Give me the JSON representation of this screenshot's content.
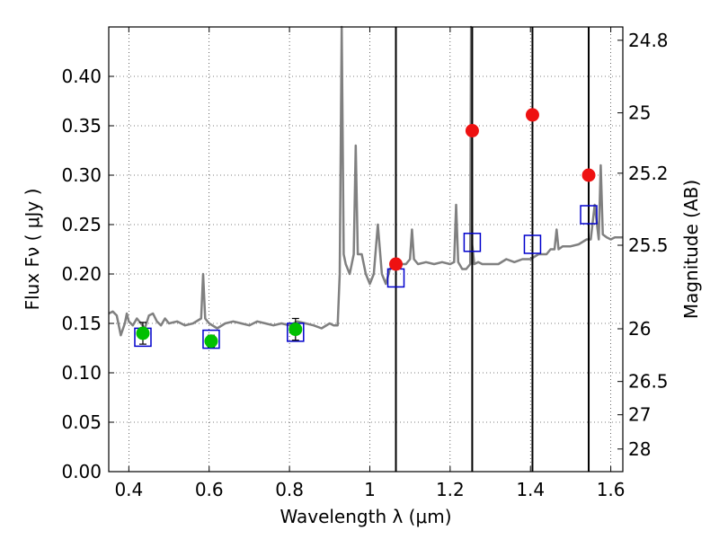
{
  "chart_data": {
    "type": "scatter",
    "xlabel": "Wavelength  λ (μm)",
    "ylabel": "Flux  Fν  ( μJy )",
    "ylabel_right": "Magnitude (AB)",
    "xlim": [
      0.35,
      1.63
    ],
    "ylim": [
      0,
      0.45
    ],
    "grid": true,
    "x_ticks": [
      0.4,
      0.6,
      0.8,
      1.0,
      1.2,
      1.4,
      1.6
    ],
    "x_tick_labels": [
      "0.4",
      "0.6",
      "0.8",
      "1",
      "1.2",
      "1.4",
      "1.6"
    ],
    "y_ticks": [
      0,
      0.05,
      0.1,
      0.15,
      0.2,
      0.25,
      0.3,
      0.35,
      0.4
    ],
    "y_tick_labels": [
      "0.00",
      "0.05",
      "0.10",
      "0.15",
      "0.20",
      "0.25",
      "0.30",
      "0.35",
      "0.40"
    ],
    "right_ticks": [
      {
        "label": "24.8",
        "mag": 24.8
      },
      {
        "label": "25",
        "mag": 25.0
      },
      {
        "label": "25.2",
        "mag": 25.2
      },
      {
        "label": "25.5",
        "mag": 25.5
      },
      {
        "label": "26",
        "mag": 26.0
      },
      {
        "label": "26.5",
        "mag": 26.5
      },
      {
        "label": "27",
        "mag": 27.0
      },
      {
        "label": "28",
        "mag": 28.0
      }
    ],
    "vertical_lines": [
      1.065,
      1.255,
      1.405,
      1.545
    ],
    "series": [
      {
        "kind": "spectrum",
        "color": "#808080",
        "x": [
          0.35,
          0.36,
          0.37,
          0.38,
          0.39,
          0.395,
          0.4,
          0.41,
          0.42,
          0.43,
          0.44,
          0.45,
          0.46,
          0.47,
          0.48,
          0.49,
          0.5,
          0.52,
          0.54,
          0.56,
          0.58,
          0.585,
          0.59,
          0.6,
          0.62,
          0.64,
          0.66,
          0.68,
          0.7,
          0.72,
          0.74,
          0.76,
          0.78,
          0.8,
          0.82,
          0.84,
          0.86,
          0.88,
          0.9,
          0.91,
          0.92,
          0.925,
          0.93,
          0.935,
          0.94,
          0.95,
          0.96,
          0.965,
          0.97,
          0.98,
          0.99,
          1.0,
          1.01,
          1.02,
          1.03,
          1.04,
          1.05,
          1.06,
          1.07,
          1.08,
          1.09,
          1.1,
          1.105,
          1.11,
          1.12,
          1.14,
          1.16,
          1.18,
          1.2,
          1.21,
          1.215,
          1.22,
          1.23,
          1.24,
          1.25,
          1.252,
          1.255,
          1.26,
          1.27,
          1.28,
          1.3,
          1.32,
          1.34,
          1.36,
          1.38,
          1.4,
          1.42,
          1.44,
          1.45,
          1.46,
          1.465,
          1.47,
          1.48,
          1.5,
          1.52,
          1.54,
          1.55,
          1.56,
          1.57,
          1.575,
          1.58,
          1.59,
          1.6,
          1.61,
          1.63
        ],
        "y": [
          0.16,
          0.162,
          0.158,
          0.138,
          0.15,
          0.16,
          0.152,
          0.148,
          0.155,
          0.15,
          0.145,
          0.158,
          0.16,
          0.152,
          0.148,
          0.155,
          0.15,
          0.152,
          0.148,
          0.15,
          0.155,
          0.2,
          0.155,
          0.15,
          0.145,
          0.15,
          0.152,
          0.15,
          0.148,
          0.152,
          0.15,
          0.148,
          0.15,
          0.148,
          0.152,
          0.15,
          0.148,
          0.145,
          0.15,
          0.148,
          0.148,
          0.2,
          0.45,
          0.22,
          0.21,
          0.2,
          0.22,
          0.33,
          0.22,
          0.22,
          0.2,
          0.19,
          0.2,
          0.25,
          0.2,
          0.19,
          0.205,
          0.21,
          0.205,
          0.21,
          0.21,
          0.215,
          0.245,
          0.215,
          0.21,
          0.212,
          0.21,
          0.212,
          0.21,
          0.212,
          0.27,
          0.212,
          0.205,
          0.205,
          0.21,
          0.45,
          0.23,
          0.21,
          0.212,
          0.21,
          0.21,
          0.21,
          0.215,
          0.212,
          0.215,
          0.215,
          0.22,
          0.22,
          0.225,
          0.225,
          0.245,
          0.225,
          0.228,
          0.228,
          0.23,
          0.235,
          0.235,
          0.27,
          0.235,
          0.31,
          0.24,
          0.237,
          0.235,
          0.237,
          0.237
        ]
      },
      {
        "kind": "green-points",
        "color": "#00c000",
        "x": [
          0.435,
          0.605,
          0.815
        ],
        "y": [
          0.14,
          0.132,
          0.144
        ],
        "err": [
          0.011,
          0.006,
          0.011
        ]
      },
      {
        "kind": "red-points",
        "color": "#ee1111",
        "x": [
          1.065,
          1.255,
          1.405,
          1.545
        ],
        "y": [
          0.21,
          0.345,
          0.361,
          0.3
        ]
      },
      {
        "kind": "blue-squares",
        "color": "#0000cc",
        "x": [
          0.435,
          0.605,
          0.815,
          1.065,
          1.255,
          1.405,
          1.545
        ],
        "y": [
          0.136,
          0.134,
          0.141,
          0.196,
          0.232,
          0.23,
          0.26
        ]
      }
    ]
  }
}
